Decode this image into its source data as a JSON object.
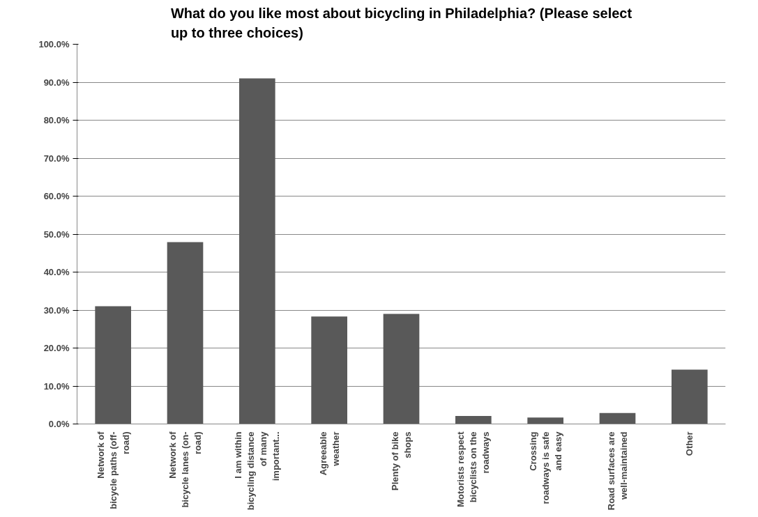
{
  "chart_data": {
    "type": "bar",
    "title": "What do you like most about bicycling in Philadelphia? (Please select\nup to three choices)",
    "categories": [
      "Network of\nbicycle paths (off-\nroad)",
      "Network of\nbicycle lanes (on-\nroad)",
      "I am within\nbicycling distance\nof many\nimportant...",
      "Agreeable\nweather",
      "Plenty of bike\nshops",
      "Motorists respect\nbicyclists on the\nroadways",
      "Crossing\nroadways is safe\nand easy",
      "Road surfaces are\nwell-maintained",
      "Other"
    ],
    "values": [
      31.0,
      47.9,
      91.0,
      28.3,
      29.0,
      2.1,
      1.7,
      2.9,
      14.3
    ],
    "color": "#595959",
    "ylim": [
      0,
      100
    ],
    "yticks": [
      {
        "value": 0,
        "label": "0.0%"
      },
      {
        "value": 10,
        "label": "10.0%"
      },
      {
        "value": 20,
        "label": "20.0%"
      },
      {
        "value": 30,
        "label": "30.0%"
      },
      {
        "value": 40,
        "label": "40.0%"
      },
      {
        "value": 50,
        "label": "50.0%"
      },
      {
        "value": 60,
        "label": "60.0%"
      },
      {
        "value": 70,
        "label": "70.0%"
      },
      {
        "value": 80,
        "label": "80.0%"
      },
      {
        "value": 90,
        "label": "90.0%"
      },
      {
        "value": 100,
        "label": "100.0%"
      }
    ],
    "grid": "y"
  }
}
